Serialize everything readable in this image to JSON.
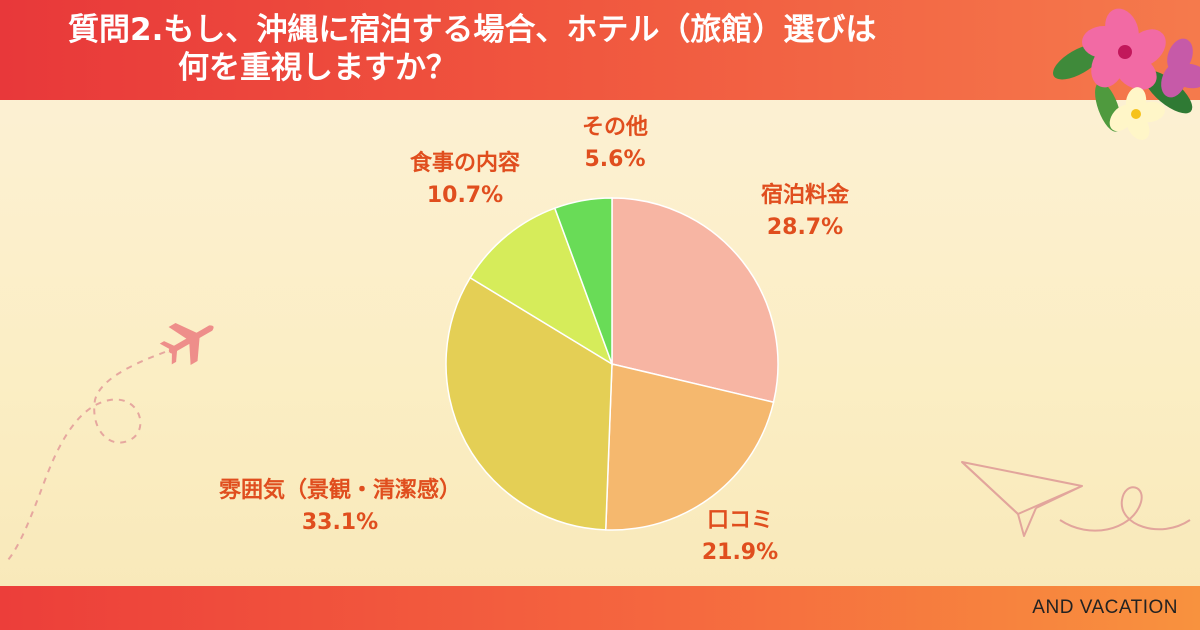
{
  "title": {
    "line1": "質問2.もし、沖縄に宿泊する場合、ホテル（旅館）選びは",
    "line2": "何を重視しますか？"
  },
  "brand": "AND VACATION",
  "colors": {
    "header_start": "#e8383a",
    "header_end": "#f57a4c",
    "label_text": "#e04e1e",
    "background": "#fdf1d8"
  },
  "icons": [
    "hibiscus-flowers-icon",
    "airplane-icon",
    "paper-plane-icon"
  ],
  "chart_data": {
    "type": "pie",
    "title": "",
    "slices": [
      {
        "label": "宿泊料金",
        "value": 28.7,
        "display": "28.7%",
        "color": "#f7b5a3"
      },
      {
        "label": "口コミ",
        "value": 21.9,
        "display": "21.9%",
        "color": "#f5b86e"
      },
      {
        "label": "雰囲気（景観・清潔感）",
        "value": 33.1,
        "display": "33.1%",
        "color": "#e4cf55"
      },
      {
        "label": "食事の内容",
        "value": 10.7,
        "display": "10.7%",
        "color": "#d6ec5a"
      },
      {
        "label": "その他",
        "value": 5.6,
        "display": "5.6%",
        "color": "#69dc57"
      }
    ],
    "start": "12 o'clock",
    "direction": "clockwise",
    "legend": "none"
  }
}
